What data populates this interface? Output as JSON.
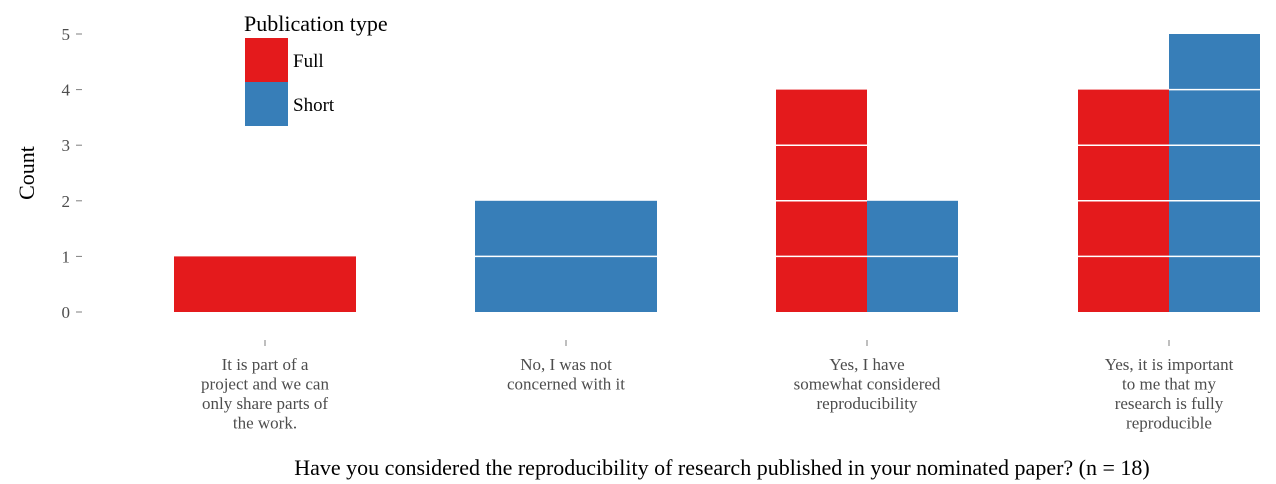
{
  "chart_data": {
    "type": "bar",
    "title": "",
    "xlabel": "Have you considered the reproducibility of research published in your nominated paper? (n = 18)",
    "ylabel": "Count",
    "ylim": [
      0,
      5
    ],
    "yticks": [
      0,
      1,
      2,
      3,
      4,
      5
    ],
    "grid": false,
    "legend": {
      "title": "Publication type",
      "placement": "top-left"
    },
    "categories": [
      [
        "It is part of a",
        "project and we can",
        "only share parts of",
        "the work."
      ],
      [
        "No, I was not",
        "concerned with it"
      ],
      [
        "Yes, I have",
        "somewhat considered",
        "reproducibility"
      ],
      [
        "Yes, it is important",
        "to me that my",
        "research is fully",
        "reproducible"
      ]
    ],
    "series": [
      {
        "name": "Full",
        "color": "#e41a1c",
        "values": [
          1,
          0,
          4,
          4
        ]
      },
      {
        "name": "Short",
        "color": "#377eb8",
        "values": [
          0,
          2,
          2,
          5
        ]
      }
    ]
  }
}
